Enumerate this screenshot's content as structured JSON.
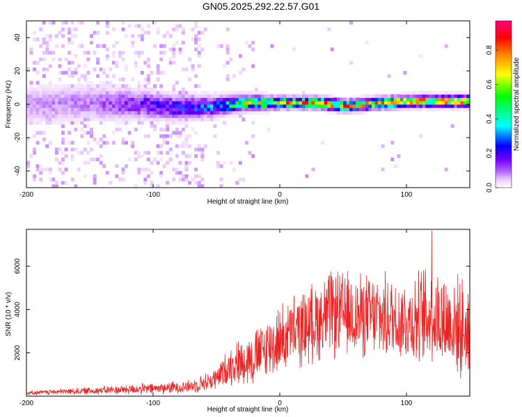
{
  "title": "GN05.2025.292.22.57.G01",
  "chart_data": [
    {
      "type": "heatmap",
      "name": "spectrogram",
      "xlabel": "Height of straight line (km)",
      "ylabel": "Frequency (Hz)",
      "xlim": [
        -200,
        150
      ],
      "ylim": [
        -50,
        50
      ],
      "xticks": [
        -200,
        -100,
        0,
        100
      ],
      "yticks": [
        -40,
        -20,
        0,
        20,
        40
      ],
      "grid": false,
      "colorbar": {
        "label": "Normalized spectral amplitude",
        "range": [
          0,
          0.97
        ],
        "ticks": [
          0.0,
          0.2,
          0.4,
          0.6,
          0.8
        ],
        "colormap": [
          "#ffffff",
          "#e8c8ff",
          "#b060ff",
          "#7000ff",
          "#0000ff",
          "#00ffff",
          "#00ff00",
          "#ffff00",
          "#ff8000",
          "#ff0000",
          "#ff0080"
        ]
      },
      "ridge": [
        {
          "x": -200,
          "freq": 0,
          "width": 9,
          "peak": 0.18
        },
        {
          "x": -150,
          "freq": 1,
          "width": 9,
          "peak": 0.2
        },
        {
          "x": -110,
          "freq": 0,
          "width": 7,
          "peak": 0.35
        },
        {
          "x": -80,
          "freq": -2,
          "width": 6,
          "peak": 0.42
        },
        {
          "x": -50,
          "freq": -1,
          "width": 5,
          "peak": 0.5
        },
        {
          "x": -30,
          "freq": 1,
          "width": 4,
          "peak": 0.7
        },
        {
          "x": 0,
          "freq": 1,
          "width": 3,
          "peak": 0.85
        },
        {
          "x": 30,
          "freq": 1,
          "width": 3,
          "peak": 0.88
        },
        {
          "x": 50,
          "freq": -1,
          "width": 3,
          "peak": 0.85
        },
        {
          "x": 80,
          "freq": 1,
          "width": 3,
          "peak": 0.86
        },
        {
          "x": 110,
          "freq": 2,
          "width": 3,
          "peak": 0.9
        },
        {
          "x": 150,
          "freq": 2,
          "width": 3,
          "peak": 0.88
        }
      ]
    },
    {
      "type": "line",
      "name": "snr",
      "xlabel": "Height of straight line (km)",
      "ylabel": "SNR (10 * v/v)",
      "xlim": [
        -200,
        150
      ],
      "ylim": [
        0,
        7700
      ],
      "xticks": [
        -200,
        -100,
        0,
        100
      ],
      "yticks": [
        2000,
        4000,
        6000
      ],
      "color": "#ee2222",
      "grid": false,
      "envelope": [
        {
          "x": -200,
          "mean": 150,
          "amp": 100
        },
        {
          "x": -150,
          "mean": 250,
          "amp": 200
        },
        {
          "x": -100,
          "mean": 350,
          "amp": 300
        },
        {
          "x": -70,
          "mean": 450,
          "amp": 350
        },
        {
          "x": -50,
          "mean": 800,
          "amp": 600
        },
        {
          "x": -40,
          "mean": 1400,
          "amp": 1000
        },
        {
          "x": -20,
          "mean": 1800,
          "amp": 1500
        },
        {
          "x": 0,
          "mean": 2600,
          "amp": 1800
        },
        {
          "x": 20,
          "mean": 3200,
          "amp": 2000
        },
        {
          "x": 40,
          "mean": 3800,
          "amp": 2300
        },
        {
          "x": 70,
          "mean": 3700,
          "amp": 2200
        },
        {
          "x": 100,
          "mean": 3500,
          "amp": 2300
        },
        {
          "x": 120,
          "mean": 3700,
          "amp": 2800
        },
        {
          "x": 150,
          "mean": 3000,
          "amp": 2500
        }
      ],
      "max_point": {
        "x": 120,
        "y": 7650
      }
    }
  ]
}
